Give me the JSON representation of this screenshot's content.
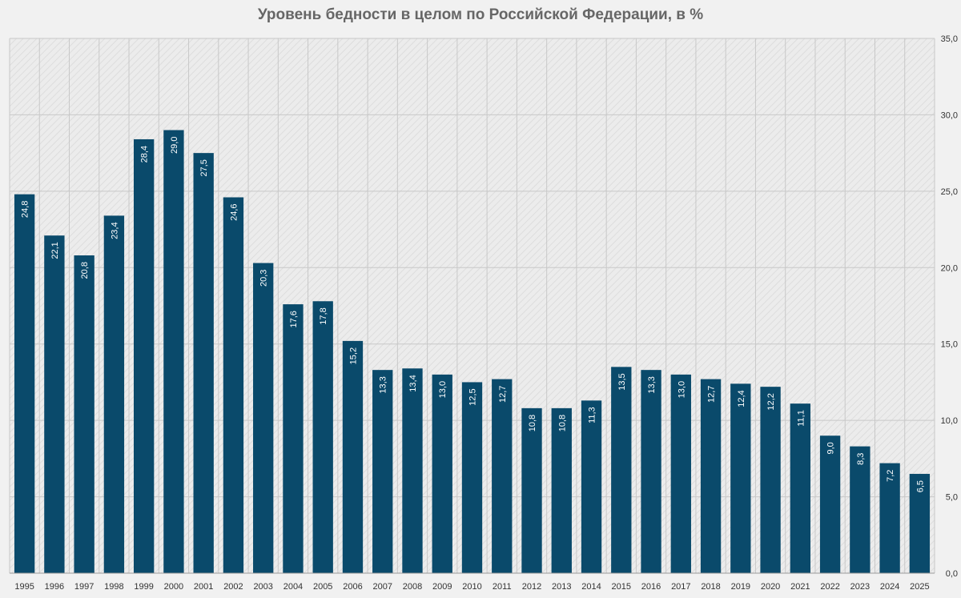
{
  "chart_data": {
    "type": "bar",
    "title": "Уровень бедности в целом по Российской Федерации, в %",
    "xlabel": "",
    "ylabel": "",
    "ylim": [
      0,
      35
    ],
    "y_ticks": [
      "0,0",
      "5,0",
      "10,0",
      "15,0",
      "20,0",
      "25,0",
      "30,0",
      "35,0"
    ],
    "y_tick_values": [
      0,
      5,
      10,
      15,
      20,
      25,
      30,
      35
    ],
    "y_axis_side": "right",
    "grid": true,
    "bar_color": "#0a4a6b",
    "grid_color": "#c8c8c8",
    "categories": [
      "1995",
      "1996",
      "1997",
      "1998",
      "1999",
      "2000",
      "2001",
      "2002",
      "2003",
      "2004",
      "2005",
      "2006",
      "2007",
      "2008",
      "2009",
      "2010",
      "2011",
      "2012",
      "2013",
      "2014",
      "2015",
      "2016",
      "2017",
      "2018",
      "2019",
      "2020",
      "2021",
      "2022",
      "2023",
      "2024",
      "2025"
    ],
    "values": [
      24.8,
      22.1,
      20.8,
      23.4,
      28.4,
      29.0,
      27.5,
      24.6,
      20.3,
      17.6,
      17.8,
      15.2,
      13.3,
      13.4,
      13.0,
      12.5,
      12.7,
      10.8,
      10.8,
      11.3,
      13.5,
      13.3,
      13.0,
      12.7,
      12.4,
      12.2,
      11.1,
      9.0,
      8.3,
      7.2,
      6.5
    ],
    "value_labels": [
      "24,8",
      "22,1",
      "20,8",
      "23,4",
      "28,4",
      "29,0",
      "27,5",
      "24,6",
      "20,3",
      "17,6",
      "17,8",
      "15,2",
      "13,3",
      "13,4",
      "13,0",
      "12,5",
      "12,7",
      "10,8",
      "10,8",
      "11,3",
      "13,5",
      "13,3",
      "13,0",
      "12,7",
      "12,4",
      "12,2",
      "11,1",
      "9,0",
      "8,3",
      "7,2",
      "6,5"
    ]
  }
}
